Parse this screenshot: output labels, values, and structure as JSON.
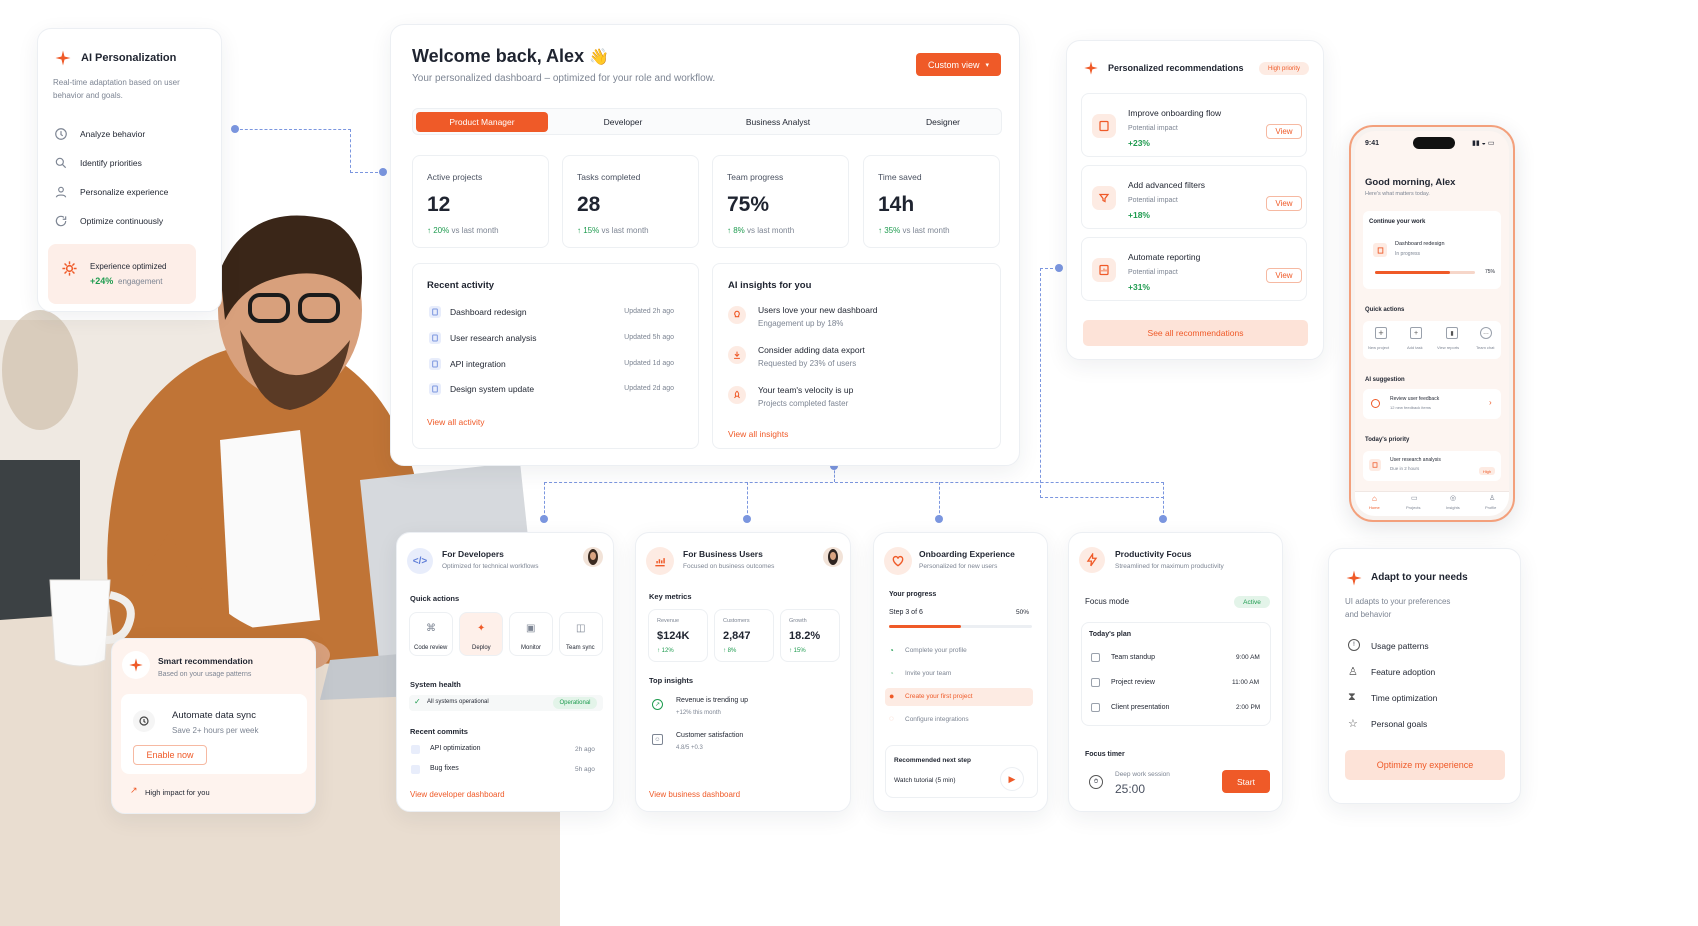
{
  "colors": {
    "accent": "#ef5a28",
    "accent_soft": "#fde3d8",
    "positive": "#1e9b4f",
    "connector": "#7b96df"
  },
  "left_card": {
    "title": "AI Personalization",
    "desc1": "Real-time adaptation based on user",
    "desc2": "behavior and goals.",
    "items": [
      {
        "label": "Analyze behavior",
        "icon": "behavior-icon"
      },
      {
        "label": "Identify priorities",
        "icon": "priority-icon"
      },
      {
        "label": "Personalize experience",
        "icon": "user-icon"
      },
      {
        "label": "Optimize continuously",
        "icon": "refresh-icon"
      }
    ],
    "optimized_label": "Experience optimized",
    "optimized_value": "+24%",
    "optimized_suffix": "engagement"
  },
  "dashboard": {
    "title": "Welcome back, Alex",
    "wave": "👋",
    "subtitle": "Your personalized dashboard – optimized for your role and workflow.",
    "custom_view": "Custom view",
    "tabs": [
      "Product Manager",
      "Developer",
      "Business Analyst",
      "Designer"
    ],
    "stats": [
      {
        "label": "Active projects",
        "value": "12",
        "delta": "20%",
        "suffix": "vs last month"
      },
      {
        "label": "Tasks completed",
        "value": "28",
        "delta": "15%",
        "suffix": "vs last month"
      },
      {
        "label": "Team progress",
        "value": "75%",
        "delta": "8%",
        "suffix": "vs last month"
      },
      {
        "label": "Time saved",
        "value": "14h",
        "delta": "35%",
        "suffix": "vs last month"
      }
    ],
    "activity": {
      "title": "Recent activity",
      "items": [
        {
          "name": "Dashboard redesign",
          "time": "Updated 2h ago"
        },
        {
          "name": "User research analysis",
          "time": "Updated 5h ago"
        },
        {
          "name": "API integration",
          "time": "Updated 1d ago"
        },
        {
          "name": "Design system update",
          "time": "Updated 2d ago"
        }
      ],
      "link": "View all activity"
    },
    "insights": {
      "title": "AI insights for you",
      "items": [
        {
          "title": "Users love your new dashboard",
          "sub": "Engagement up by 18%"
        },
        {
          "title": "Consider adding data export",
          "sub": "Requested by 23% of users"
        },
        {
          "title": "Your team's velocity is up",
          "sub": "Projects completed faster"
        }
      ],
      "link": "View all insights"
    }
  },
  "recs": {
    "title": "Personalized recommendations",
    "badge": "High priority",
    "impact_label": "Potential impact",
    "view": "View",
    "items": [
      {
        "title": "Improve onboarding flow",
        "value": "+23%"
      },
      {
        "title": "Add advanced filters",
        "value": "+18%"
      },
      {
        "title": "Automate reporting",
        "value": "+31%"
      }
    ],
    "see_all": "See all recommendations"
  },
  "phone": {
    "time": "9:41",
    "greeting": "Good morning, Alex",
    "sub": "Here's what matters today.",
    "continue_label": "Continue your work",
    "task_name": "Dashboard redesign",
    "task_status": "In progress",
    "task_progress": "75%",
    "task_fraction": 0.75,
    "quick_label": "Quick actions",
    "quick": [
      "New project",
      "Add task",
      "View reports",
      "Team chat"
    ],
    "ai_label": "AI suggestion",
    "ai_title": "Review user feedback",
    "ai_sub": "12 new feedback items",
    "priority_label": "Today's priority",
    "priority_title": "User research analysis",
    "priority_sub": "Due in 2 hours",
    "priority_badge": "High",
    "nav": [
      "Home",
      "Projects",
      "Insights",
      "Profile"
    ]
  },
  "smart": {
    "title": "Smart recommendation",
    "sub": "Based on your usage patterns",
    "item": "Automate data sync",
    "item_sub": "Save 2+ hours per week",
    "button": "Enable now",
    "footer": "High impact for you"
  },
  "dev": {
    "title": "For Developers",
    "sub": "Optimized for technical workflows",
    "quick_label": "Quick actions",
    "quick": [
      "Code review",
      "Deploy",
      "Monitor",
      "Team sync"
    ],
    "health_label": "System health",
    "health_text": "All systems operational",
    "health_badge": "Operational",
    "commits_label": "Recent commits",
    "commits": [
      {
        "name": "API optimization",
        "time": "2h ago"
      },
      {
        "name": "Bug fixes",
        "time": "5h ago"
      }
    ],
    "link": "View developer dashboard"
  },
  "biz": {
    "title": "For Business Users",
    "sub": "Focused on business outcomes",
    "metrics_label": "Key metrics",
    "metrics": [
      {
        "label": "Revenue",
        "value": "$124K",
        "delta": "12%"
      },
      {
        "label": "Customers",
        "value": "2,847",
        "delta": "8%"
      },
      {
        "label": "Growth",
        "value": "18.2%",
        "delta": "15%"
      }
    ],
    "insights_label": "Top insights",
    "insights": [
      {
        "title": "Revenue is trending up",
        "sub": "+12% this month"
      },
      {
        "title": "Customer satisfaction",
        "sub": "4.8/5  +0.3"
      }
    ],
    "link": "View business dashboard"
  },
  "onb": {
    "title": "Onboarding Experience",
    "sub": "Personalized for new users",
    "progress_label": "Your progress",
    "step": "Step 3 of 6",
    "pct": "50%",
    "fraction": 0.5,
    "steps": [
      "Complete your profile",
      "Invite your team",
      "Create your first project",
      "Configure integrations"
    ],
    "next_label": "Recommended next step",
    "next_item": "Watch tutorial (5 min)"
  },
  "prod": {
    "title": "Productivity Focus",
    "sub": "Streamlined for maximum productivity",
    "mode_label": "Focus mode",
    "mode_badge": "Active",
    "plan_label": "Today's plan",
    "plan": [
      {
        "name": "Team standup",
        "time": "9:00 AM"
      },
      {
        "name": "Project review",
        "time": "11:00 AM"
      },
      {
        "name": "Client presentation",
        "time": "2:00 PM"
      }
    ],
    "timer_label": "Focus timer",
    "session": "Deep work session",
    "timer": "25:00",
    "start": "Start"
  },
  "adapt": {
    "title": "Adapt to your needs",
    "desc1": "UI adapts to your preferences",
    "desc2": "and behavior",
    "items": [
      "Usage patterns",
      "Feature adoption",
      "Time optimization",
      "Personal goals"
    ],
    "button": "Optimize my experience"
  }
}
